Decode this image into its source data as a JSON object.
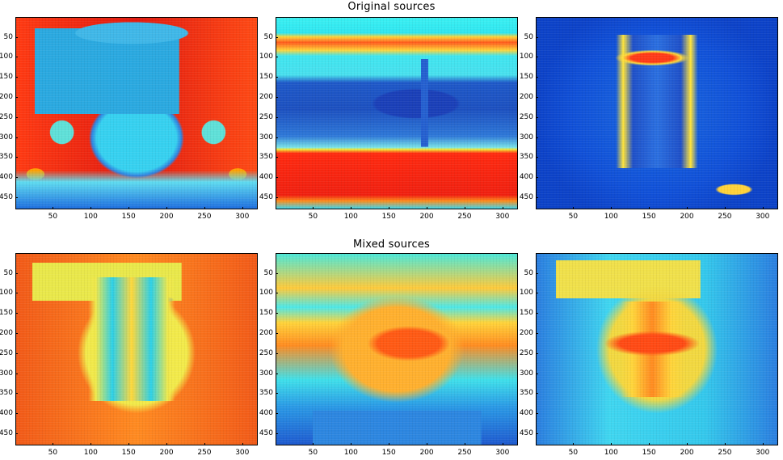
{
  "rows": [
    {
      "title": "Original sources"
    },
    {
      "title": "Mixed sources"
    }
  ],
  "y_ticks": [
    "50",
    "100",
    "150",
    "200",
    "250",
    "300",
    "350",
    "400",
    "450"
  ],
  "x_ticks": [
    "50",
    "100",
    "150",
    "200",
    "250",
    "300"
  ],
  "axis": {
    "x_range": [
      0.5,
      320.5
    ],
    "y_range": [
      0.5,
      480.5
    ],
    "y_reversed": true
  },
  "panels": [
    {
      "image": "man-with-fez-image"
    },
    {
      "image": "palm-tree-beach-image"
    },
    {
      "image": "ostrich-image"
    },
    {
      "image": "mixed-source-1-image"
    },
    {
      "image": "mixed-source-2-image"
    },
    {
      "image": "mixed-source-3-image"
    }
  ]
}
